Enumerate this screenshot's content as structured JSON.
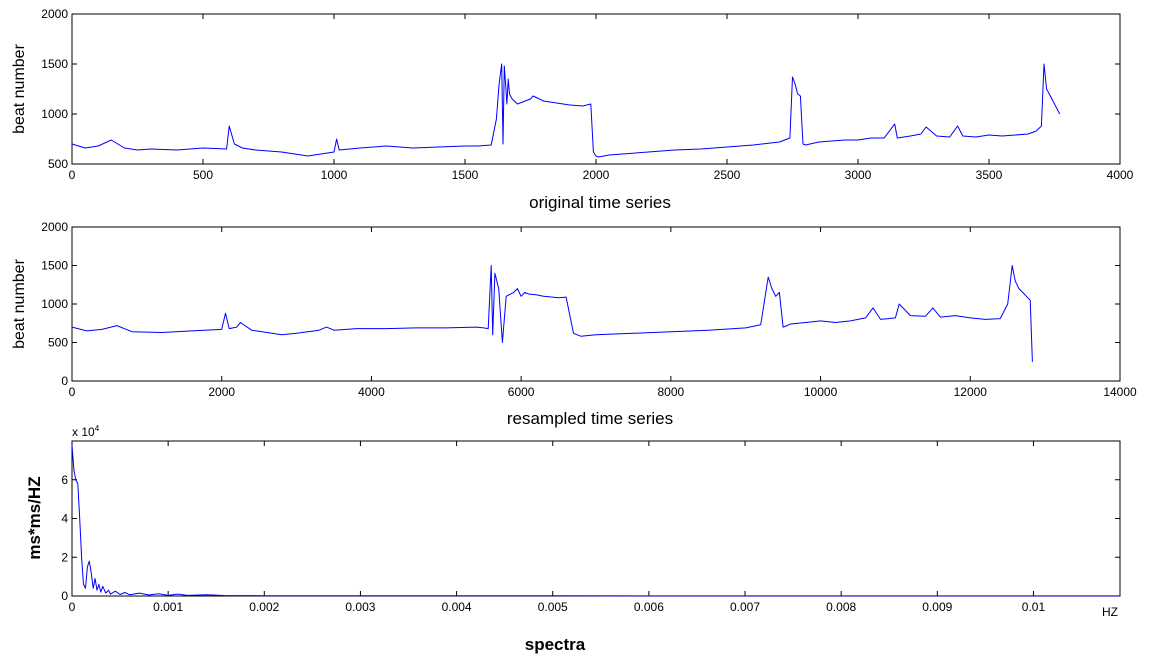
{
  "chart_data": [
    {
      "type": "line",
      "xlabel": "original time series",
      "ylabel": "beat number",
      "xlim": [
        0,
        4000
      ],
      "ylim": [
        500,
        2000
      ],
      "xticks": [
        0,
        500,
        1000,
        1500,
        2000,
        2500,
        3000,
        3500,
        4000
      ],
      "yticks": [
        500,
        1000,
        1500,
        2000
      ],
      "grid": false,
      "color": "#0000ff",
      "series": [
        {
          "x": [
            0,
            50,
            100,
            150,
            200,
            250,
            300,
            400,
            500,
            590,
            600,
            620,
            650,
            700,
            800,
            850,
            900,
            1000,
            1010,
            1020,
            1100,
            1200,
            1300,
            1400,
            1500,
            1550,
            1600,
            1620,
            1630,
            1640,
            1645,
            1650,
            1655,
            1660,
            1665,
            1670,
            1680,
            1700,
            1720,
            1750,
            1760,
            1800,
            1850,
            1900,
            1950,
            1980,
            1990,
            2000,
            2010,
            2050,
            2100,
            2200,
            2300,
            2400,
            2500,
            2600,
            2700,
            2740,
            2750,
            2760,
            2770,
            2780,
            2790,
            2800,
            2850,
            2900,
            2950,
            3000,
            3050,
            3100,
            3140,
            3150,
            3200,
            3240,
            3260,
            3300,
            3350,
            3380,
            3400,
            3450,
            3500,
            3550,
            3600,
            3650,
            3680,
            3700,
            3710,
            3720,
            3730,
            3750,
            3770
          ],
          "y": [
            700,
            660,
            680,
            740,
            660,
            640,
            650,
            640,
            660,
            650,
            880,
            700,
            660,
            640,
            620,
            600,
            580,
            620,
            750,
            640,
            660,
            680,
            660,
            670,
            680,
            680,
            690,
            950,
            1300,
            1500,
            700,
            1480,
            1300,
            1100,
            1350,
            1200,
            1150,
            1100,
            1120,
            1150,
            1180,
            1130,
            1110,
            1090,
            1080,
            1100,
            620,
            580,
            570,
            590,
            600,
            620,
            640,
            650,
            670,
            690,
            720,
            760,
            1370,
            1300,
            1200,
            1180,
            700,
            690,
            720,
            730,
            740,
            740,
            760,
            760,
            900,
            760,
            780,
            800,
            870,
            780,
            770,
            880,
            780,
            770,
            790,
            780,
            790,
            800,
            830,
            880,
            1500,
            1250,
            1200,
            1100,
            1000
          ]
        }
      ]
    },
    {
      "type": "line",
      "xlabel": "resampled time series",
      "ylabel": "beat number",
      "xlim": [
        0,
        14000
      ],
      "ylim": [
        0,
        2000
      ],
      "xticks": [
        0,
        2000,
        4000,
        6000,
        8000,
        10000,
        12000,
        14000
      ],
      "yticks": [
        0,
        500,
        1000,
        1500,
        2000
      ],
      "grid": false,
      "color": "#0000ff",
      "series": [
        {
          "x": [
            0,
            200,
            400,
            600,
            800,
            1200,
            1600,
            2000,
            2050,
            2100,
            2200,
            2250,
            2400,
            2800,
            3000,
            3300,
            3400,
            3500,
            3800,
            4200,
            4600,
            5000,
            5400,
            5500,
            5560,
            5600,
            5620,
            5650,
            5700,
            5750,
            5800,
            5900,
            5950,
            6000,
            6050,
            6100,
            6200,
            6300,
            6500,
            6600,
            6700,
            6800,
            7000,
            7500,
            8000,
            8500,
            9000,
            9200,
            9300,
            9350,
            9400,
            9450,
            9500,
            9550,
            9600,
            9800,
            10000,
            10200,
            10400,
            10600,
            10700,
            10800,
            11000,
            11050,
            11200,
            11400,
            11500,
            11600,
            11800,
            12000,
            12200,
            12400,
            12500,
            12560,
            12600,
            12650,
            12700,
            12750,
            12800,
            12830
          ],
          "y": [
            700,
            650,
            670,
            720,
            640,
            630,
            650,
            670,
            880,
            680,
            700,
            760,
            660,
            600,
            620,
            660,
            700,
            660,
            680,
            680,
            690,
            690,
            700,
            690,
            680,
            1500,
            600,
            1400,
            1200,
            500,
            1100,
            1150,
            1200,
            1100,
            1150,
            1130,
            1120,
            1100,
            1080,
            1090,
            620,
            580,
            600,
            620,
            640,
            660,
            690,
            730,
            1350,
            1200,
            1100,
            1150,
            700,
            720,
            740,
            760,
            780,
            760,
            780,
            820,
            950,
            800,
            820,
            1000,
            850,
            840,
            950,
            830,
            850,
            820,
            800,
            810,
            1000,
            1500,
            1300,
            1200,
            1150,
            1100,
            1050,
            250
          ]
        }
      ]
    },
    {
      "type": "line",
      "xlabel": "spectra",
      "ylabel": "ms*ms/HZ",
      "xunit": "HZ",
      "yexponent": "x 10^4",
      "xlim": [
        0,
        0.0109
      ],
      "ylim": [
        0,
        80000
      ],
      "xticks": [
        0,
        0.001,
        0.002,
        0.003,
        0.004,
        0.005,
        0.006,
        0.007,
        0.008,
        0.009,
        0.01
      ],
      "yticks": [
        0,
        20000,
        40000,
        60000
      ],
      "grid": false,
      "color": "#0000ff",
      "series": [
        {
          "x": [
            0,
            2e-05,
            4e-05,
            6e-05,
            8e-05,
            0.0001,
            0.00012,
            0.00014,
            0.00016,
            0.00018,
            0.0002,
            0.00022,
            0.00024,
            0.00026,
            0.00028,
            0.0003,
            0.00032,
            0.00035,
            0.00038,
            0.0004,
            0.00045,
            0.0005,
            0.00055,
            0.0006,
            0.0007,
            0.0008,
            0.0009,
            0.001,
            0.0011,
            0.0012,
            0.0014,
            0.0016,
            0.002,
            0.003,
            0.005,
            0.008,
            0.0109
          ],
          "y": [
            78000,
            65000,
            60000,
            58000,
            40000,
            20000,
            6000,
            4000,
            15000,
            18000,
            12000,
            4000,
            9000,
            3000,
            6000,
            2000,
            5000,
            1500,
            3000,
            1000,
            2500,
            800,
            1800,
            600,
            1500,
            500,
            1200,
            300,
            1000,
            300,
            600,
            200,
            150,
            100,
            80,
            50,
            30
          ]
        }
      ]
    }
  ],
  "panels": [
    {
      "xticklabels": [
        "0",
        "500",
        "1000",
        "1500",
        "2000",
        "2500",
        "3000",
        "3500",
        "4000"
      ],
      "yticklabels": [
        "500",
        "1000",
        "1500",
        "2000"
      ]
    },
    {
      "xticklabels": [
        "0",
        "2000",
        "4000",
        "6000",
        "8000",
        "10000",
        "12000",
        "14000"
      ],
      "yticklabels": [
        "0",
        "500",
        "1000",
        "1500",
        "2000"
      ]
    },
    {
      "xticklabels": [
        "0",
        "0.001",
        "0.002",
        "0.003",
        "0.004",
        "0.005",
        "0.006",
        "0.007",
        "0.008",
        "0.009",
        "0.01"
      ],
      "yticklabels": [
        "0",
        "2",
        "4",
        "6"
      ],
      "exponent_base": "x 10",
      "exponent_power": "4"
    }
  ]
}
